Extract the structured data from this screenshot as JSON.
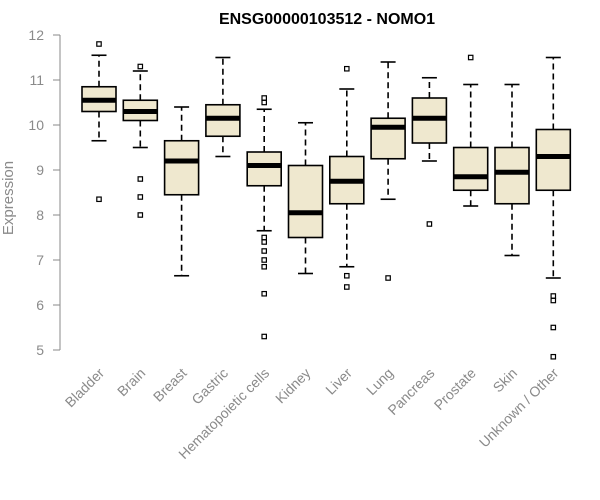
{
  "chart_data": {
    "type": "box",
    "title": "ENSG00000103512 - NOMO1",
    "ylabel": "Expression",
    "ylim": [
      4.8,
      12.05
    ],
    "yticks": [
      5,
      6,
      7,
      8,
      9,
      10,
      11,
      12
    ],
    "categories": [
      "Bladder",
      "Brain",
      "Breast",
      "Gastric",
      "Hematopoietic cells",
      "Kidney",
      "Liver",
      "Lung",
      "Pancreas",
      "Prostate",
      "Skin",
      "Unknown / Other"
    ],
    "colors": {
      "box_fill": "#efe8cf",
      "box_stroke": "#000000",
      "axis": "#8a8a8a"
    },
    "boxes": [
      {
        "q1": 10.3,
        "median": 10.55,
        "q3": 10.85,
        "whisker_low": 9.65,
        "whisker_high": 11.55,
        "outliers": [
          11.8,
          8.35
        ]
      },
      {
        "q1": 10.1,
        "median": 10.3,
        "q3": 10.55,
        "whisker_low": 9.5,
        "whisker_high": 11.2,
        "outliers": [
          11.3,
          8.8,
          8.4,
          8.0
        ]
      },
      {
        "q1": 8.45,
        "median": 9.2,
        "q3": 9.65,
        "whisker_low": 6.65,
        "whisker_high": 10.4,
        "outliers": []
      },
      {
        "q1": 9.75,
        "median": 10.15,
        "q3": 10.45,
        "whisker_low": 9.3,
        "whisker_high": 11.5,
        "outliers": []
      },
      {
        "q1": 8.65,
        "median": 9.1,
        "q3": 9.4,
        "whisker_low": 7.65,
        "whisker_high": 10.35,
        "outliers": [
          10.6,
          10.5,
          7.5,
          7.4,
          7.2,
          7.0,
          6.85,
          6.25,
          5.3
        ]
      },
      {
        "q1": 7.5,
        "median": 8.05,
        "q3": 9.1,
        "whisker_low": 6.7,
        "whisker_high": 10.05,
        "outliers": []
      },
      {
        "q1": 8.25,
        "median": 8.75,
        "q3": 9.3,
        "whisker_low": 6.85,
        "whisker_high": 10.8,
        "outliers": [
          11.25,
          6.65,
          6.4
        ]
      },
      {
        "q1": 9.25,
        "median": 9.95,
        "q3": 10.15,
        "whisker_low": 8.35,
        "whisker_high": 11.4,
        "outliers": [
          6.6
        ]
      },
      {
        "q1": 9.6,
        "median": 10.15,
        "q3": 10.6,
        "whisker_low": 9.2,
        "whisker_high": 11.05,
        "outliers": [
          7.8
        ]
      },
      {
        "q1": 8.55,
        "median": 8.85,
        "q3": 9.5,
        "whisker_low": 8.2,
        "whisker_high": 10.9,
        "outliers": [
          11.5
        ]
      },
      {
        "q1": 8.25,
        "median": 8.95,
        "q3": 9.5,
        "whisker_low": 7.1,
        "whisker_high": 10.9,
        "outliers": []
      },
      {
        "q1": 8.55,
        "median": 9.3,
        "q3": 9.9,
        "whisker_low": 6.6,
        "whisker_high": 11.5,
        "outliers": [
          6.2,
          6.1,
          5.5,
          4.85
        ]
      }
    ]
  }
}
